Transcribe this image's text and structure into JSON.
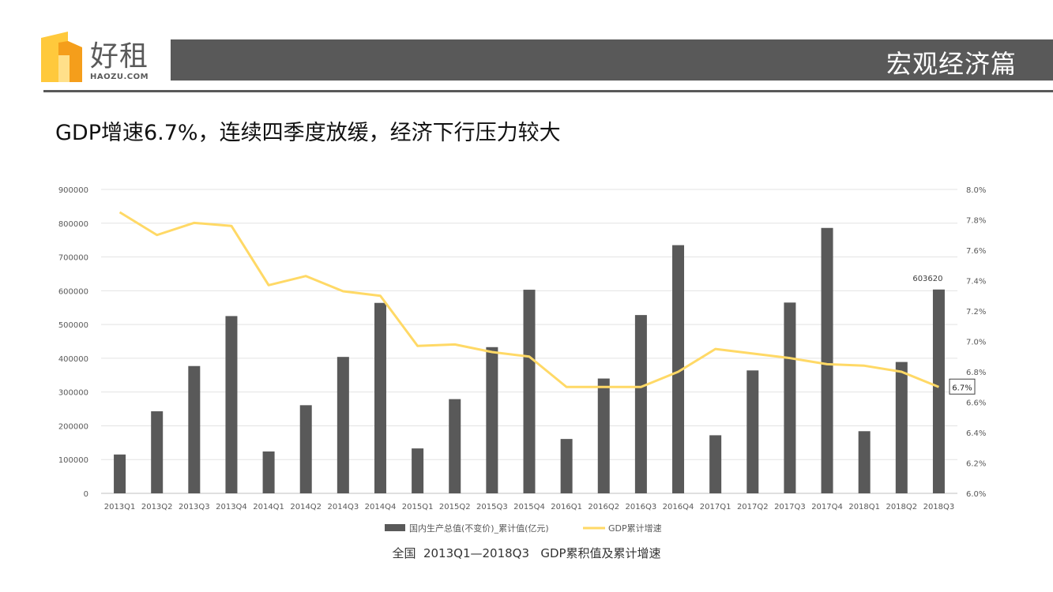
{
  "logo": {
    "cn": "好租",
    "en": "HAOZU.COM",
    "colors": [
      "#FFC93C",
      "#F59E1B"
    ]
  },
  "header": {
    "title": "宏观经济篇",
    "bar_color": "#595959"
  },
  "headline": "GDP增速6.7%，连续四季度放缓，经济下行压力较大",
  "caption": "全国  2013Q1—2018Q3   GDP累积值及累计增速",
  "chart_data": {
    "type": "bar",
    "title": "",
    "categories": [
      "2013Q1",
      "2013Q2",
      "2013Q3",
      "2013Q4",
      "2014Q1",
      "2014Q2",
      "2014Q3",
      "2014Q4",
      "2015Q1",
      "2015Q2",
      "2015Q3",
      "2015Q4",
      "2016Q1",
      "2016Q2",
      "2016Q3",
      "2016Q4",
      "2017Q1",
      "2017Q2",
      "2017Q3",
      "2017Q4",
      "2018Q1",
      "2018Q2",
      "2018Q3"
    ],
    "series": [
      {
        "name": "国内生产总值(不变价)_累计值(亿元)",
        "type": "bar",
        "axis": "left",
        "color": "#595959",
        "values": [
          115000,
          243000,
          377000,
          525000,
          124000,
          261000,
          404000,
          564000,
          133000,
          279000,
          433000,
          603000,
          161000,
          340000,
          528000,
          735000,
          172000,
          364000,
          565000,
          786000,
          184000,
          389000,
          603620
        ]
      },
      {
        "name": "GDP累计增速",
        "type": "line",
        "axis": "right",
        "color": "#FFD966",
        "values": [
          7.85,
          7.7,
          7.78,
          7.76,
          7.37,
          7.43,
          7.33,
          7.3,
          6.97,
          6.98,
          6.93,
          6.9,
          6.7,
          6.7,
          6.7,
          6.8,
          6.95,
          6.92,
          6.89,
          6.85,
          6.84,
          6.8,
          6.7
        ]
      }
    ],
    "y_left": {
      "min": 0,
      "max": 900000,
      "ticks": [
        "0",
        "100000",
        "200000",
        "300000",
        "400000",
        "500000",
        "600000",
        "700000",
        "800000",
        "900000"
      ]
    },
    "y_right": {
      "min": 6.0,
      "max": 8.0,
      "ticks": [
        "6.0%",
        "6.2%",
        "6.4%",
        "6.6%",
        "6.8%",
        "7.0%",
        "7.2%",
        "7.4%",
        "7.6%",
        "7.8%",
        "8.0%"
      ]
    },
    "annotations": {
      "last_bar_label": "603620",
      "last_line_label": "6.7%"
    },
    "legend": {
      "position": "bottom",
      "bar_label": "国内生产总值(不变价)_累计值(亿元)",
      "line_label": "GDP累计增速"
    },
    "grid": true
  }
}
